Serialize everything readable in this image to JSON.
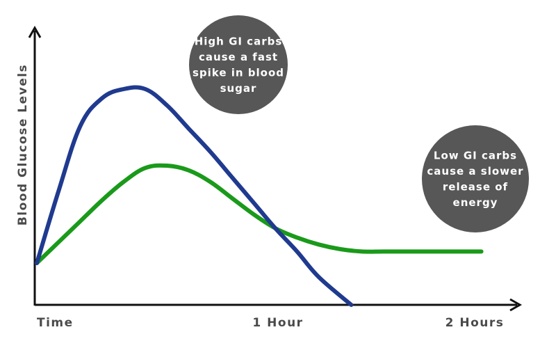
{
  "chart_data": {
    "type": "line",
    "title": "",
    "xlabel": "",
    "ylabel": "Blood Glucose Levels",
    "x_ticks": [
      {
        "x": 0,
        "label": "Time"
      },
      {
        "x": 1,
        "label": "1 Hour"
      },
      {
        "x": 2,
        "label": "2 Hours"
      }
    ],
    "xlim": [
      0,
      2.05
    ],
    "ylim": [
      0,
      10
    ],
    "grid": false,
    "series": [
      {
        "color": "#1f3a8f",
        "x": [
          0,
          0.1,
          0.2,
          0.3,
          0.4,
          0.5,
          0.6,
          0.7,
          0.8,
          0.9,
          1.0,
          1.1,
          1.2,
          1.3,
          1.45
        ],
        "y": [
          1.8,
          4.9,
          7.7,
          8.9,
          9.3,
          9.3,
          8.6,
          7.6,
          6.6,
          5.5,
          4.4,
          3.3,
          2.3,
          1.2,
          0
        ]
      },
      {
        "color": "#1a9a1a",
        "x": [
          0,
          0.1,
          0.2,
          0.3,
          0.4,
          0.5,
          0.6,
          0.7,
          0.8,
          0.9,
          1.0,
          1.1,
          1.2,
          1.3,
          1.4,
          1.5,
          1.6,
          1.7,
          1.8,
          1.9,
          2.0,
          2.05
        ],
        "y": [
          1.8,
          2.7,
          3.6,
          4.5,
          5.3,
          5.9,
          6.0,
          5.8,
          5.3,
          4.6,
          3.9,
          3.3,
          2.9,
          2.6,
          2.4,
          2.3,
          2.3,
          2.3,
          2.3,
          2.3,
          2.3,
          2.3
        ]
      }
    ],
    "annotations": [
      {
        "lines": [
          "High GI carbs",
          "cause a fast",
          "spike in blood",
          "sugar"
        ],
        "color": "#575757"
      },
      {
        "lines": [
          "Low GI carbs",
          "cause a slower",
          "release of",
          "energy"
        ],
        "color": "#575757"
      }
    ]
  }
}
